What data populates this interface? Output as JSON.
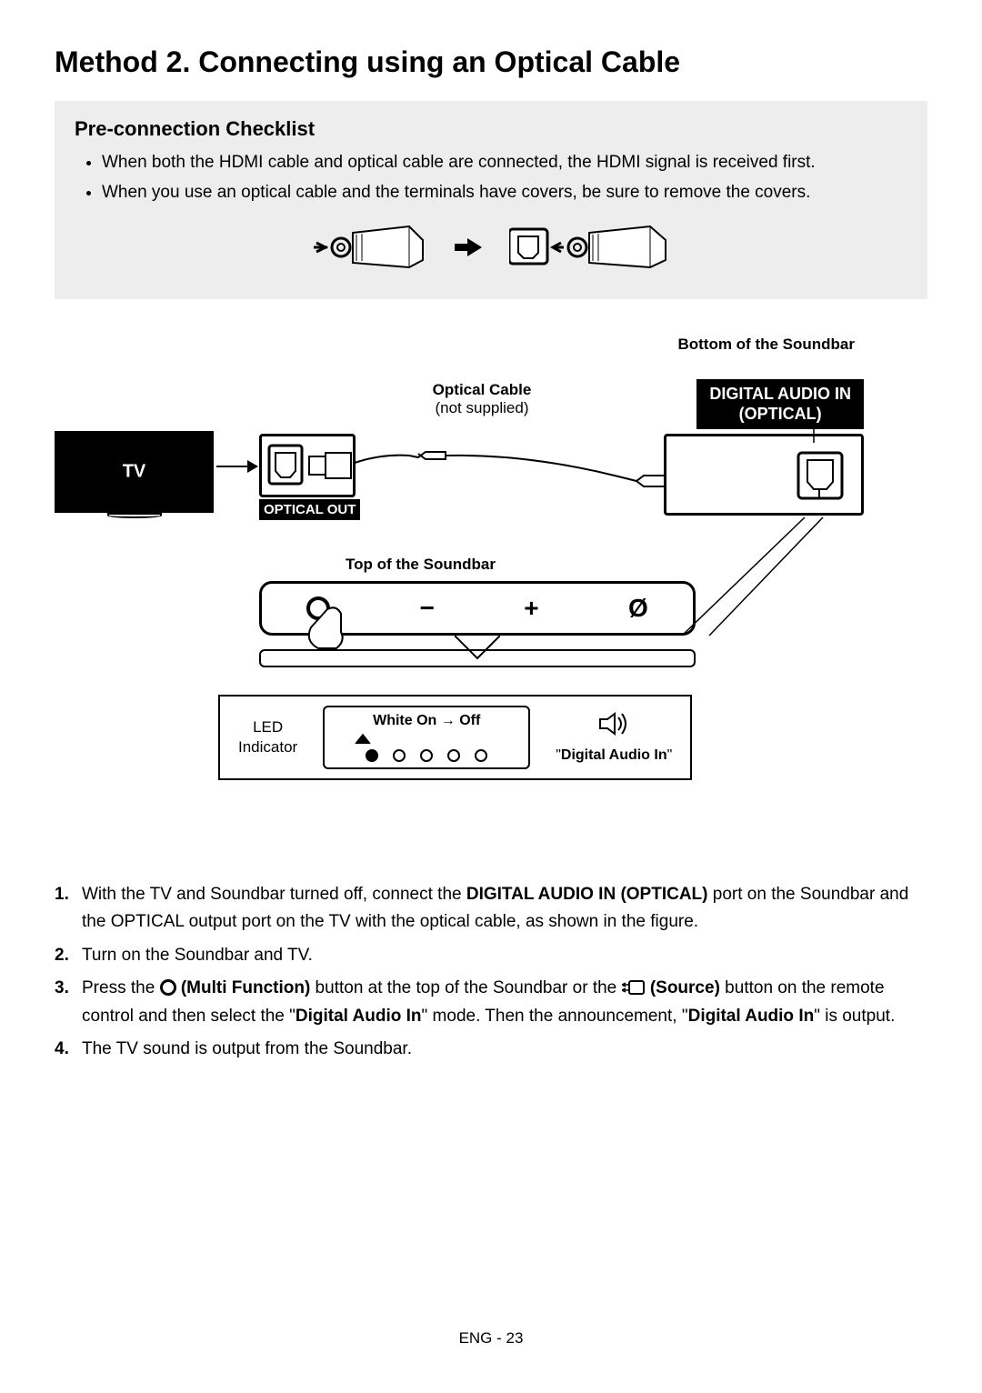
{
  "title": "Method 2. Connecting using an Optical Cable",
  "checklist": {
    "heading": "Pre-connection Checklist",
    "items": [
      "When both the HDMI cable and optical cable are connected, the HDMI signal is received first.",
      "When you use an optical cable and the terminals have covers, be sure to remove the covers."
    ]
  },
  "diagram": {
    "bottom_label": "Bottom of the Soundbar",
    "optical_cable": "Optical Cable",
    "optical_cable_sub": "(not supplied)",
    "digital_audio_in": "DIGITAL AUDIO IN",
    "digital_audio_in_sub": "(OPTICAL)",
    "tv": "TV",
    "optical_out": "OPTICAL OUT",
    "top_soundbar": "Top of the Soundbar",
    "soundbar_buttons": [
      "circle",
      "−",
      "+",
      "Ø"
    ],
    "led_label_1": "LED",
    "led_label_2": "Indicator",
    "led_box_title": "White On → Off",
    "led_dots_count": 5,
    "led_filled_index": 0,
    "speaker_text": "Digital Audio In"
  },
  "steps": [
    {
      "parts": [
        {
          "t": "text",
          "v": "With the TV and Soundbar turned off, connect the "
        },
        {
          "t": "bold",
          "v": "DIGITAL AUDIO IN (OPTICAL)"
        },
        {
          "t": "text",
          "v": " port on the Soundbar and the OPTICAL output port on the TV with the optical cable, as shown in the figure."
        }
      ]
    },
    {
      "parts": [
        {
          "t": "text",
          "v": "Turn on the Soundbar and TV."
        }
      ]
    },
    {
      "parts": [
        {
          "t": "text",
          "v": "Press the "
        },
        {
          "t": "circle-icon"
        },
        {
          "t": "bold",
          "v": " (Multi Function)"
        },
        {
          "t": "text",
          "v": " button at the top of the Soundbar or the "
        },
        {
          "t": "source-icon"
        },
        {
          "t": "bold",
          "v": " (Source)"
        },
        {
          "t": "text",
          "v": " button on the remote control and then select the \""
        },
        {
          "t": "bold",
          "v": "Digital Audio In"
        },
        {
          "t": "text",
          "v": "\" mode. Then the announcement, \""
        },
        {
          "t": "bold",
          "v": "Digital Audio In"
        },
        {
          "t": "text",
          "v": "\" is output."
        }
      ]
    },
    {
      "parts": [
        {
          "t": "text",
          "v": "The TV sound is output from the Soundbar."
        }
      ]
    }
  ],
  "footer": "ENG - 23",
  "colors": {
    "page_bg": "#ffffff",
    "text": "#000000",
    "checklist_bg": "#ededed"
  }
}
